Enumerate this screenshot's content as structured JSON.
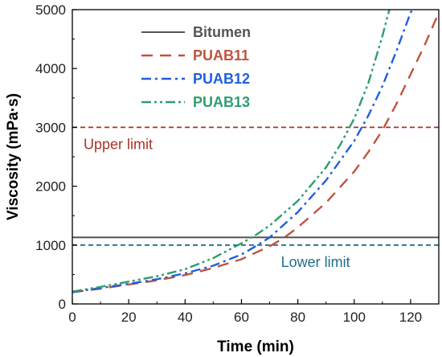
{
  "chart_data": {
    "type": "line",
    "title": "",
    "xlabel": "Time (min)",
    "ylabel": "Viscosity (mPa·s)",
    "xlim": [
      0,
      130
    ],
    "ylim": [
      0,
      5000
    ],
    "xticks": [
      0,
      20,
      40,
      60,
      80,
      100,
      120
    ],
    "yticks": [
      0,
      1000,
      2000,
      3000,
      4000,
      5000
    ],
    "legend_position": "top-left",
    "grid": false,
    "series": [
      {
        "name": "Bitumen",
        "color": "#555555",
        "dash": "solid",
        "x": [
          0,
          130
        ],
        "y": [
          1130,
          1130
        ]
      },
      {
        "name": "PUAB11",
        "color": "#c0533f",
        "dash": "dash",
        "x": [
          0,
          10,
          20,
          30,
          40,
          50,
          60,
          70,
          75,
          80,
          90,
          100,
          105,
          110,
          115,
          120,
          125,
          130
        ],
        "y": [
          200,
          260,
          330,
          400,
          490,
          610,
          760,
          980,
          1120,
          1300,
          1720,
          2250,
          2580,
          2950,
          3400,
          3900,
          4400,
          4950
        ]
      },
      {
        "name": "PUAB12",
        "color": "#1f5fe0",
        "dash": "dashdot",
        "x": [
          0,
          10,
          20,
          30,
          40,
          50,
          60,
          65,
          70,
          80,
          90,
          100,
          105,
          110,
          115,
          120,
          122
        ],
        "y": [
          200,
          270,
          340,
          420,
          520,
          650,
          840,
          980,
          1130,
          1560,
          2100,
          2770,
          3200,
          3700,
          4300,
          4950,
          5100
        ]
      },
      {
        "name": "PUAB13",
        "color": "#2e9e6e",
        "dash": "dashdotdot",
        "x": [
          0,
          10,
          20,
          30,
          40,
          50,
          60,
          65,
          70,
          80,
          90,
          95,
          100,
          105,
          110,
          113
        ],
        "y": [
          210,
          290,
          380,
          470,
          590,
          780,
          1030,
          1170,
          1330,
          1750,
          2320,
          2700,
          3150,
          3750,
          4550,
          5100
        ]
      }
    ],
    "reference_lines": [
      {
        "label": "Upper limit",
        "y": 3000,
        "color": "#a83226"
      },
      {
        "label": "Lower limit",
        "y": 1000,
        "color": "#1f6e8c"
      }
    ]
  }
}
